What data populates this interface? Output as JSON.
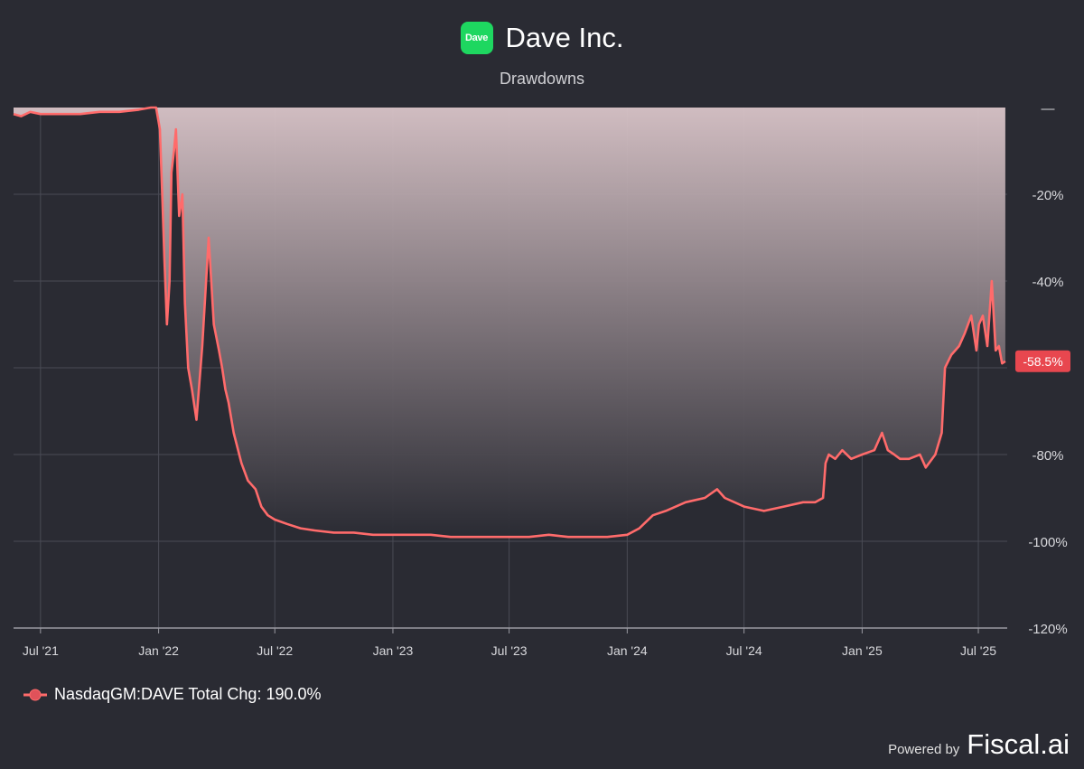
{
  "header": {
    "logo_text": "Dave",
    "title": "Dave Inc.",
    "subtitle": "Drawdowns",
    "logo_color": "#1ed760"
  },
  "chart_data": {
    "type": "area",
    "title": "Dave Inc.",
    "subtitle": "Drawdowns",
    "y_axis": {
      "position": "right",
      "range": [
        -120,
        0
      ],
      "ticks": [
        0,
        -20,
        -40,
        -60,
        -80,
        -100,
        -120
      ],
      "tick_labels": [
        "—",
        "-20%",
        "-40%",
        "",
        "-80%",
        "-100%",
        "-120%"
      ]
    },
    "x_axis": {
      "range": [
        "2021-05-20",
        "2025-08-15"
      ],
      "ticks": [
        "2021-07-01",
        "2022-01-01",
        "2022-07-01",
        "2023-01-01",
        "2023-07-01",
        "2024-01-01",
        "2024-07-01",
        "2025-01-01",
        "2025-07-01"
      ],
      "tick_labels": [
        "Jul '21",
        "Jan '22",
        "Jul '22",
        "Jan '23",
        "Jul '23",
        "Jan '24",
        "Jul '24",
        "Jan '25",
        "Jul '25"
      ]
    },
    "grid": true,
    "series": [
      {
        "name": "NasdaqGM:DAVE",
        "color": "#ff6b6b",
        "x": [
          "2021-05-20",
          "2021-06-01",
          "2021-06-15",
          "2021-07-01",
          "2021-08-01",
          "2021-09-01",
          "2021-10-01",
          "2021-11-01",
          "2021-12-01",
          "2021-12-20",
          "2021-12-28",
          "2022-01-03",
          "2022-01-07",
          "2022-01-10",
          "2022-01-14",
          "2022-01-18",
          "2022-01-21",
          "2022-01-25",
          "2022-01-28",
          "2022-02-02",
          "2022-02-07",
          "2022-02-11",
          "2022-02-16",
          "2022-02-22",
          "2022-03-01",
          "2022-03-10",
          "2022-03-20",
          "2022-03-28",
          "2022-04-05",
          "2022-04-10",
          "2022-04-15",
          "2022-04-20",
          "2022-04-28",
          "2022-05-10",
          "2022-05-20",
          "2022-06-01",
          "2022-06-10",
          "2022-06-20",
          "2022-07-01",
          "2022-07-20",
          "2022-08-10",
          "2022-09-01",
          "2022-10-01",
          "2022-11-01",
          "2022-12-01",
          "2023-01-01",
          "2023-02-01",
          "2023-03-01",
          "2023-04-01",
          "2023-05-01",
          "2023-06-01",
          "2023-07-01",
          "2023-08-01",
          "2023-09-01",
          "2023-10-01",
          "2023-11-01",
          "2023-12-01",
          "2024-01-01",
          "2024-01-20",
          "2024-02-10",
          "2024-03-01",
          "2024-04-01",
          "2024-05-01",
          "2024-05-20",
          "2024-06-01",
          "2024-07-01",
          "2024-08-01",
          "2024-09-01",
          "2024-10-01",
          "2024-10-20",
          "2024-11-01",
          "2024-11-05",
          "2024-11-10",
          "2024-11-20",
          "2024-12-01",
          "2024-12-15",
          "2025-01-01",
          "2025-01-20",
          "2025-02-01",
          "2025-02-10",
          "2025-02-20",
          "2025-03-01",
          "2025-03-15",
          "2025-04-01",
          "2025-04-10",
          "2025-04-25",
          "2025-05-05",
          "2025-05-10",
          "2025-05-20",
          "2025-06-01",
          "2025-06-10",
          "2025-06-20",
          "2025-06-28",
          "2025-07-02",
          "2025-07-08",
          "2025-07-15",
          "2025-07-22",
          "2025-07-28",
          "2025-08-02",
          "2025-08-07",
          "2025-08-12"
        ],
        "y": [
          -1.5,
          -2,
          -1,
          -1.5,
          -1.5,
          -1.5,
          -1,
          -1,
          -0.5,
          0,
          0,
          -5,
          -22,
          -35,
          -50,
          -40,
          -15,
          -10,
          -5,
          -25,
          -20,
          -45,
          -60,
          -65,
          -72,
          -55,
          -30,
          -50,
          -56,
          -60,
          -65,
          -68,
          -75,
          -82,
          -86,
          -88,
          -92,
          -94,
          -95,
          -96,
          -97,
          -97.5,
          -98,
          -98,
          -98.5,
          -98.5,
          -98.5,
          -98.5,
          -99,
          -99,
          -99,
          -99,
          -99,
          -98.5,
          -99,
          -99,
          -99,
          -98.5,
          -97,
          -94,
          -93,
          -91,
          -90,
          -88,
          -90,
          -92,
          -93,
          -92,
          -91,
          -91,
          -90,
          -82,
          -80,
          -81,
          -79,
          -81,
          -80,
          -79,
          -75,
          -79,
          -80,
          -81,
          -81,
          -80,
          -83,
          -80,
          -75,
          -60,
          -57,
          -55,
          -52,
          -48,
          -56,
          -50,
          -48,
          -55,
          -40,
          -56,
          -55,
          -59,
          -58.5
        ]
      }
    ],
    "last_value_label": "-58.5%",
    "legend": {
      "position": "bottom-left",
      "text": "NasdaqGM:DAVE Total Chg: 190.0%"
    }
  },
  "footer": {
    "powered_by": "Powered by",
    "brand": "Fiscal.ai"
  }
}
